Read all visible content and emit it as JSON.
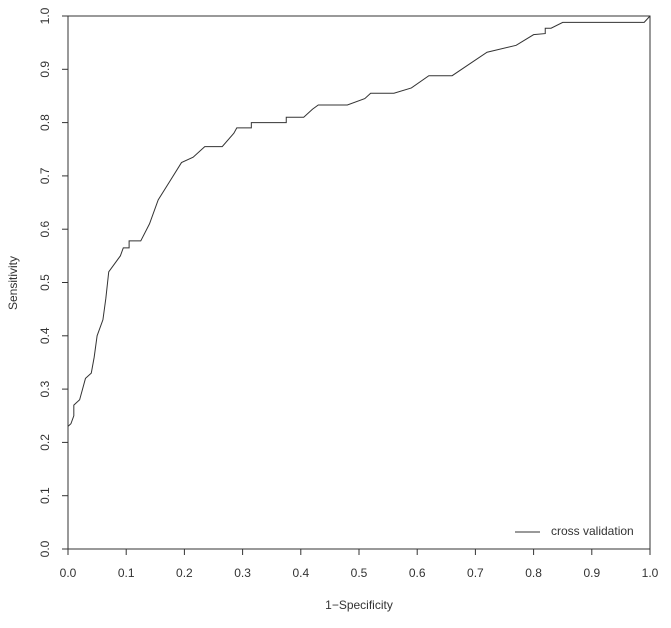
{
  "chart_data": {
    "type": "line",
    "xlabel": "1−Specificity",
    "ylabel": "Sensitivity",
    "x": [
      0,
      0.005,
      0.01,
      0.01,
      0.02,
      0.025,
      0.03,
      0.04,
      0.045,
      0.05,
      0.06,
      0.065,
      0.07,
      0.09,
      0.095,
      0.105,
      0.105,
      0.125,
      0.14,
      0.155,
      0.175,
      0.195,
      0.215,
      0.235,
      0.265,
      0.285,
      0.29,
      0.315,
      0.315,
      0.375,
      0.375,
      0.405,
      0.42,
      0.43,
      0.48,
      0.51,
      0.52,
      0.56,
      0.59,
      0.62,
      0.66,
      0.69,
      0.72,
      0.77,
      0.8,
      0.82,
      0.82,
      0.83,
      0.85,
      0.99,
      1.0
    ],
    "series": [
      {
        "name": "cross validation",
        "color": "#333333",
        "values": [
          0.23,
          0.235,
          0.25,
          0.27,
          0.28,
          0.3,
          0.32,
          0.33,
          0.36,
          0.4,
          0.43,
          0.47,
          0.52,
          0.55,
          0.565,
          0.565,
          0.578,
          0.578,
          0.61,
          0.655,
          0.69,
          0.725,
          0.735,
          0.755,
          0.755,
          0.78,
          0.79,
          0.79,
          0.8,
          0.8,
          0.81,
          0.81,
          0.825,
          0.833,
          0.833,
          0.845,
          0.855,
          0.855,
          0.865,
          0.888,
          0.888,
          0.91,
          0.932,
          0.945,
          0.965,
          0.967,
          0.977,
          0.977,
          0.988,
          0.988,
          1.0
        ]
      }
    ],
    "xlim": [
      0,
      1
    ],
    "ylim": [
      0,
      1
    ],
    "xticks": [
      {
        "value": 0,
        "label": "0.0"
      },
      0.1,
      0.2,
      0.3,
      0.4,
      0.5,
      0.6,
      0.7,
      0.8,
      0.9,
      {
        "value": 1,
        "label": "1.0"
      }
    ],
    "yticks": [
      {
        "value": 0,
        "label": "0.0"
      },
      0.1,
      0.2,
      0.3,
      0.4,
      0.5,
      0.6,
      0.7,
      0.8,
      0.9,
      {
        "value": 1,
        "label": "1.0"
      }
    ],
    "legend": "bottom-right"
  }
}
